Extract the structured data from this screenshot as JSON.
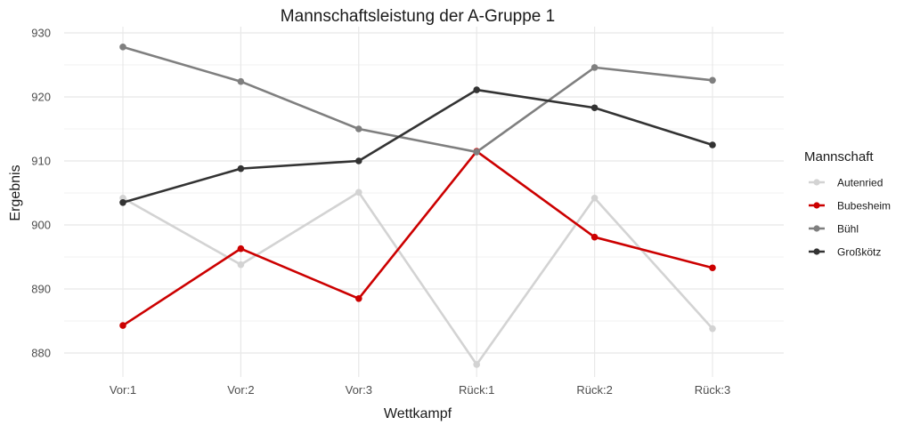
{
  "chart_data": {
    "type": "line",
    "title": "Mannschaftsleistung der A-Gruppe 1",
    "xlabel": "Wettkampf",
    "ylabel": "Ergebnis",
    "categories": [
      "Vor:1",
      "Vor:2",
      "Vor:3",
      "Rück:1",
      "Rück:2",
      "Rück:3"
    ],
    "yticks": [
      880,
      890,
      900,
      910,
      920,
      930
    ],
    "ylim": [
      876,
      930
    ],
    "grid": true,
    "legend_position": "right",
    "legend_title": "Mannschaft",
    "series": [
      {
        "name": "Autenried",
        "color": "#d3d3d3",
        "values": [
          904.2,
          893.8,
          905.1,
          878.2,
          904.2,
          883.8
        ]
      },
      {
        "name": "Bubesheim",
        "color": "#cc0000",
        "values": [
          884.3,
          896.3,
          888.5,
          911.5,
          898.1,
          893.3
        ]
      },
      {
        "name": "Bühl",
        "color": "#7f7f7f",
        "values": [
          927.8,
          922.4,
          915.0,
          911.4,
          924.6,
          922.6
        ]
      },
      {
        "name": "Großkötz",
        "color": "#333333",
        "values": [
          903.5,
          908.8,
          910.0,
          921.1,
          918.3,
          912.5
        ]
      }
    ]
  }
}
